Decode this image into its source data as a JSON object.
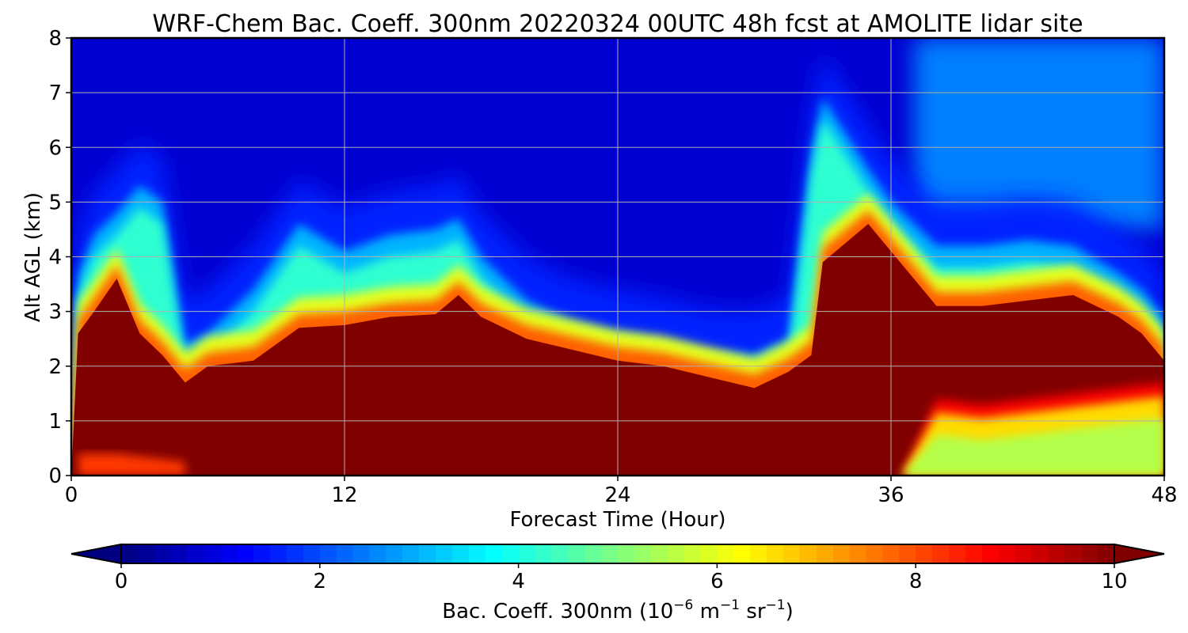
{
  "chart_data": {
    "type": "heatmap",
    "title": "WRF-Chem Bac. Coeff. 300nm  20220324 00UTC 48h fcst at AMOLITE lidar site",
    "xlabel": "Forecast Time (Hour)",
    "ylabel": "Alt AGL (km)",
    "xlim": [
      0,
      48
    ],
    "ylim": [
      0,
      8
    ],
    "xticks": [
      0,
      12,
      24,
      36,
      48
    ],
    "yticks": [
      0,
      1,
      2,
      3,
      4,
      5,
      6,
      7,
      8
    ],
    "grid": true,
    "colormap": "jet",
    "colorbar": {
      "label_main": "Bac. Coeff. 300nm  (10",
      "exp1": "−6",
      "label_mid": " m",
      "exp2": "−1",
      "label_mid2": " sr",
      "exp3": "−1",
      "label_end": ")",
      "range": [
        0,
        10
      ],
      "ticks": [
        0,
        2,
        4,
        6,
        8,
        10
      ],
      "extend": "both"
    },
    "x": [
      0,
      0.3,
      1,
      2,
      3,
      4,
      5,
      6,
      8,
      10,
      12,
      14,
      16,
      17,
      18,
      20,
      22,
      24,
      26,
      28,
      30,
      31.5,
      32.5,
      33,
      35,
      36,
      38,
      40,
      42,
      44,
      46,
      47,
      48
    ],
    "profiles": {
      "top_of_high_backscatter_km": [
        0,
        2.6,
        3.0,
        3.6,
        2.6,
        2.2,
        1.7,
        2.0,
        2.1,
        2.7,
        2.75,
        2.9,
        2.95,
        3.3,
        2.9,
        2.5,
        2.3,
        2.1,
        2.0,
        1.8,
        1.6,
        1.9,
        2.2,
        3.9,
        4.6,
        4.1,
        3.1,
        3.1,
        3.2,
        3.3,
        2.9,
        2.6,
        2.1
      ],
      "aerosol_layer_top_km": [
        0,
        3.3,
        4.0,
        4.4,
        4.9,
        4.6,
        2.0,
        2.2,
        3.0,
        4.2,
        3.7,
        4.0,
        4.1,
        4.3,
        3.6,
        2.8,
        2.4,
        2.2,
        2.05,
        1.85,
        1.8,
        2.1,
        5.5,
        6.5,
        5.2,
        4.6,
        3.8,
        3.8,
        3.9,
        3.8,
        3.3,
        3.0,
        2.5
      ],
      "lower_layer_top_km": [
        0,
        0.4,
        0.4,
        0.4,
        0.35,
        0.3,
        0.25,
        0,
        0,
        0,
        0,
        0,
        0,
        0,
        0,
        0,
        0,
        0,
        0,
        0,
        0,
        0,
        0,
        0,
        0,
        0,
        1.15,
        1.05,
        1.15,
        1.25,
        1.35,
        1.4,
        1.45
      ]
    },
    "representative_values": {
      "boundary_layer_below_2km": 10,
      "free_troposphere_above_5km": 0.8,
      "plume_after_hour_36_above_5km": 2.5,
      "lower_layer_after_hour_37": 5.5
    }
  },
  "colors": {
    "colormap_low": "#00007f",
    "colormap_high": "#7f0000"
  }
}
